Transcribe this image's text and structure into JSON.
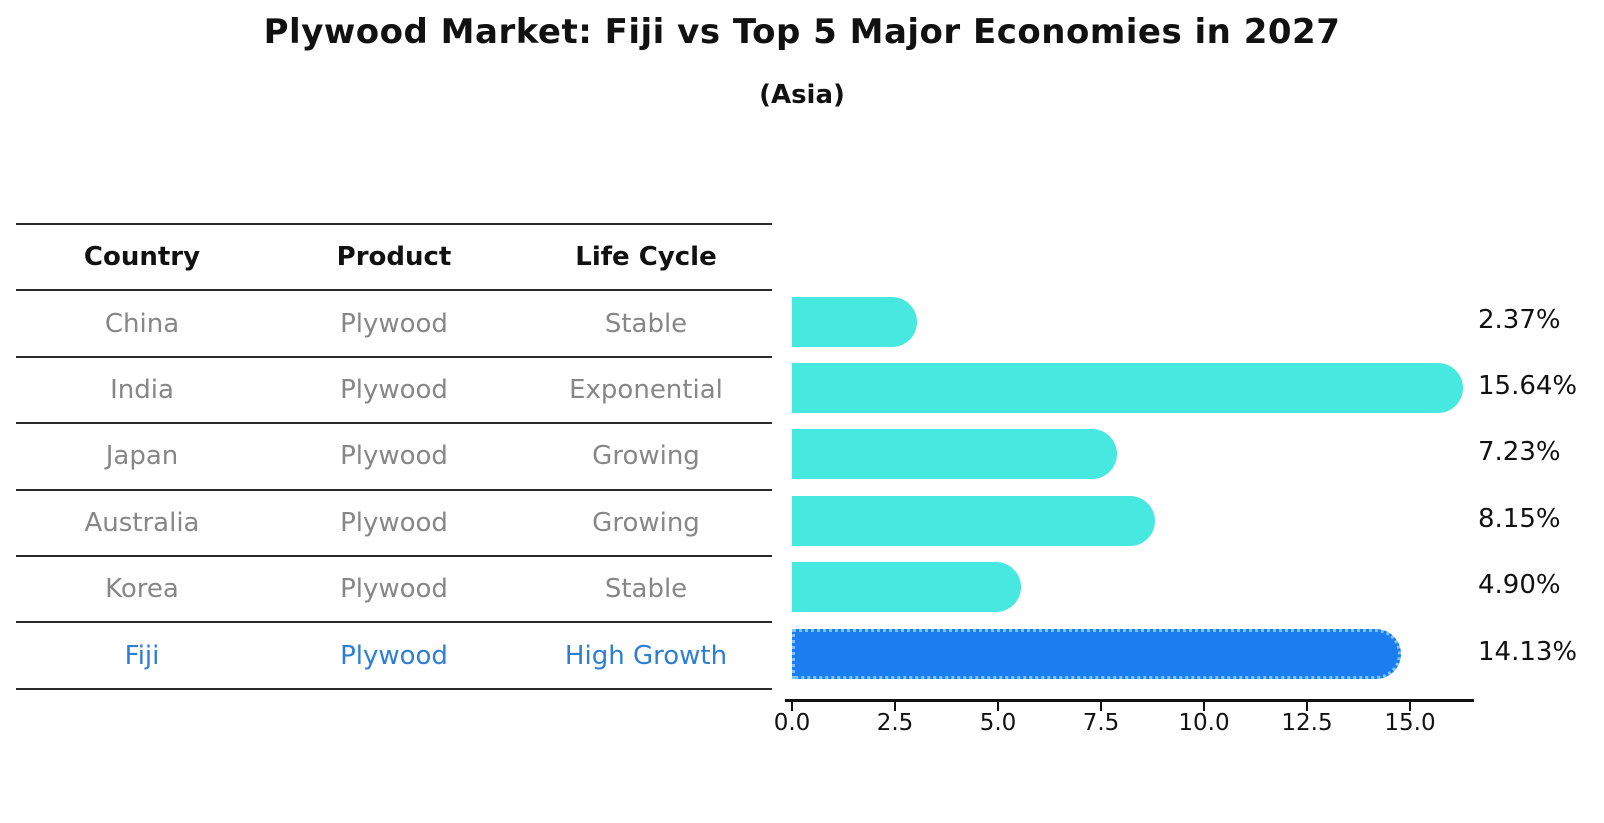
{
  "title": "Plywood Market: Fiji vs Top 5 Major Economies in 2027",
  "subtitle": "(Asia)",
  "table": {
    "headers": [
      "Country",
      "Product",
      "Life Cycle"
    ],
    "rows": [
      {
        "country": "China",
        "product": "Plywood",
        "life_cycle": "Stable",
        "highlight": false
      },
      {
        "country": "India",
        "product": "Plywood",
        "life_cycle": "Exponential",
        "highlight": false
      },
      {
        "country": "Japan",
        "product": "Plywood",
        "life_cycle": "Growing",
        "highlight": false
      },
      {
        "country": "Australia",
        "product": "Plywood",
        "life_cycle": "Growing",
        "highlight": false
      },
      {
        "country": "Korea",
        "product": "Plywood",
        "life_cycle": "Stable",
        "highlight": false
      },
      {
        "country": "Fiji",
        "product": "Plywood",
        "life_cycle": "High Growth",
        "highlight": true
      }
    ]
  },
  "chart_data": {
    "type": "bar",
    "orientation": "horizontal",
    "title": "Plywood Market: Fiji vs Top 5 Major Economies in 2027",
    "subtitle": "(Asia)",
    "categories": [
      "China",
      "India",
      "Japan",
      "Australia",
      "Korea",
      "Fiji"
    ],
    "values": [
      2.37,
      15.64,
      7.23,
      8.15,
      4.9,
      14.13
    ],
    "value_labels": [
      "2.37%",
      "15.64%",
      "7.23%",
      "8.15%",
      "4.90%",
      "14.13%"
    ],
    "x_ticks": [
      0.0,
      2.5,
      5.0,
      7.5,
      10.0,
      12.5,
      15.0
    ],
    "x_tick_labels": [
      "0.0",
      "2.5",
      "5.0",
      "7.5",
      "10.0",
      "12.5",
      "15.0"
    ],
    "xlim": [
      0,
      16.5
    ],
    "grid": false,
    "legend": "none",
    "bar_color": "#46e8e0",
    "highlight_index": 5,
    "highlight_color": "#1a7df0",
    "highlight_border_color": "#7fc4f8"
  },
  "colors": {
    "background": "#ffffff",
    "table_line": "#2b2b2b",
    "muted_text": "#878787",
    "highlight_text": "#2e7fd4",
    "label_text": "#111111"
  }
}
